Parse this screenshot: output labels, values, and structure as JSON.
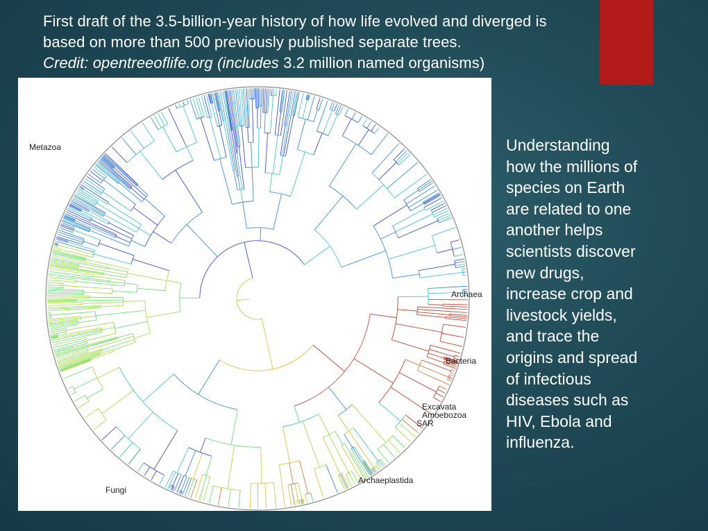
{
  "slide": {
    "accent_color": "#b31b1b",
    "title_lines": [
      "First draft of the 3.5-billion-year history of how life evolved and diverged is",
      "based on more than 500 previously published separate trees."
    ],
    "credit": {
      "prefix": "Credit: opentreeoflife.org (includes",
      "suffix": " 3.2 million named organisms)"
    },
    "body_lines": [
      "Understanding",
      "how the millions of",
      "species on Earth",
      "are related to one",
      "another helps",
      "scientists discover",
      "new drugs,",
      "increase crop and",
      "livestock yields,",
      "and trace the",
      "origins and spread",
      "of infectious",
      "diseases such as",
      "HIV, Ebola and",
      "influenza."
    ]
  },
  "figure": {
    "labels": {
      "metazoa": "Metazoa",
      "archaea": "Archaea",
      "bacteria": "Bacteria",
      "excavata": "Excavata",
      "amoebozoa": "Amoebozoa",
      "sar": "SAR",
      "archaeplastida": "Archaeplastida",
      "fungi": "Fungi"
    },
    "branch_colors": [
      "#3b4fd8",
      "#3a8fd8",
      "#46c7d0",
      "#6fe07a",
      "#a8e04a",
      "#e0c43a",
      "#e07a3a",
      "#c8402c"
    ]
  }
}
